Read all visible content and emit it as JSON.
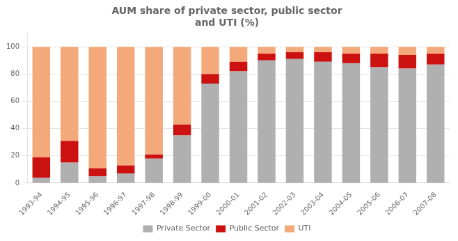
{
  "chart_data": {
    "type": "bar",
    "title": "AUM share of private sector, public sector\nand UTI (%)",
    "categories": [
      "1993-94",
      "1994-95",
      "1995-96",
      "1996-97",
      "1997-98",
      "1998-99",
      "1999-00",
      "2000-01",
      "2001-02",
      "2002-03",
      "2003-04",
      "2004-05",
      "2005-06",
      "2006-07",
      "2007-08"
    ],
    "series": [
      {
        "name": "Private Sector",
        "color": "#b0b0b0",
        "values": [
          4,
          15,
          5,
          7,
          18,
          35,
          73,
          82,
          90,
          91,
          89,
          88,
          85,
          84,
          87
        ]
      },
      {
        "name": "Public Sector",
        "color": "#cc1111",
        "values": [
          15,
          16,
          6,
          6,
          3,
          8,
          7,
          7,
          5,
          5,
          7,
          7,
          10,
          10,
          8
        ]
      },
      {
        "name": "UTI",
        "color": "#f4a97a",
        "values": [
          81,
          69,
          89,
          87,
          79,
          57,
          20,
          11,
          5,
          4,
          4,
          5,
          5,
          6,
          5
        ]
      }
    ],
    "stacked": true,
    "ylim": [
      0,
      110
    ],
    "yticks": [
      0,
      20,
      40,
      60,
      80,
      100
    ],
    "grid": true,
    "legend": "bottom"
  }
}
